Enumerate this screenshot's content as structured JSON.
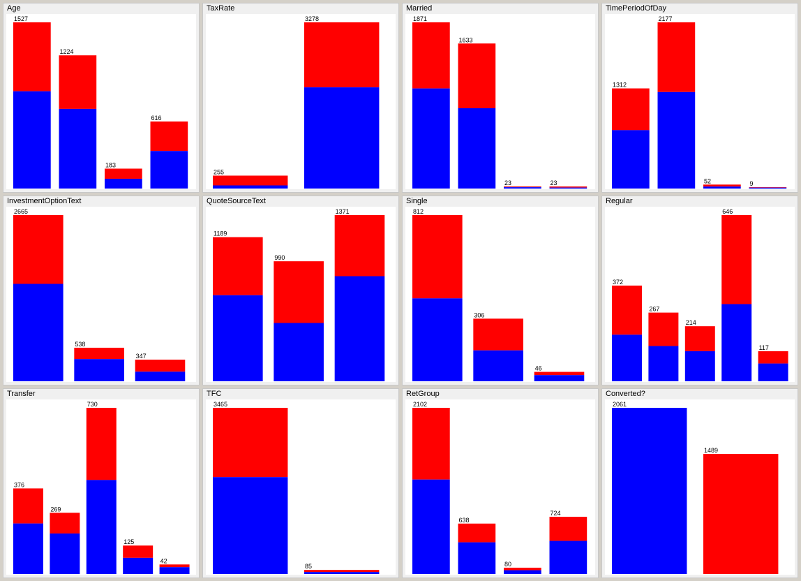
{
  "colors": {
    "series_a": "#0000ff",
    "series_b": "#ff0000"
  },
  "chart_data": [
    {
      "type": "bar",
      "title": "Age",
      "bars": [
        {
          "total": 1527,
          "a": 894
        },
        {
          "total": 1224,
          "a": 732
        },
        {
          "total": 183,
          "a": 90
        },
        {
          "total": 616,
          "a": 345
        }
      ]
    },
    {
      "type": "bar",
      "title": "TaxRate",
      "bars": [
        {
          "total": 255,
          "a": 62
        },
        {
          "total": 3278,
          "a": 1996
        }
      ]
    },
    {
      "type": "bar",
      "title": "Married",
      "bars": [
        {
          "total": 1871,
          "a": 1127
        },
        {
          "total": 1633,
          "a": 904
        },
        {
          "total": 23,
          "a": 15
        },
        {
          "total": 23,
          "a": 11
        }
      ]
    },
    {
      "type": "bar",
      "title": "TimePeriodOfDay",
      "bars": [
        {
          "total": 1312,
          "a": 765
        },
        {
          "total": 2177,
          "a": 1264
        },
        {
          "total": 52,
          "a": 26
        },
        {
          "total": 9,
          "a": 6
        }
      ]
    },
    {
      "type": "bar",
      "title": "InvestmentOptionText",
      "bars": [
        {
          "total": 2665,
          "a": 1562
        },
        {
          "total": 538,
          "a": 356
        },
        {
          "total": 347,
          "a": 154
        }
      ]
    },
    {
      "type": "bar",
      "title": "QuoteSourceText",
      "bars": [
        {
          "total": 1189,
          "a": 710
        },
        {
          "total": 990,
          "a": 481
        },
        {
          "total": 1371,
          "a": 867
        }
      ]
    },
    {
      "type": "bar",
      "title": "Single",
      "bars": [
        {
          "total": 812,
          "a": 405
        },
        {
          "total": 306,
          "a": 151
        },
        {
          "total": 46,
          "a": 30
        }
      ]
    },
    {
      "type": "bar",
      "title": "Regular",
      "bars": [
        {
          "total": 372,
          "a": 181
        },
        {
          "total": 267,
          "a": 137
        },
        {
          "total": 214,
          "a": 117
        },
        {
          "total": 646,
          "a": 300
        },
        {
          "total": 117,
          "a": 69
        }
      ]
    },
    {
      "type": "bar",
      "title": "Transfer",
      "bars": [
        {
          "total": 376,
          "a": 222
        },
        {
          "total": 269,
          "a": 178
        },
        {
          "total": 730,
          "a": 413
        },
        {
          "total": 125,
          "a": 71
        },
        {
          "total": 42,
          "a": 30
        }
      ]
    },
    {
      "type": "bar",
      "title": "TFC",
      "bars": [
        {
          "total": 3465,
          "a": 2020
        },
        {
          "total": 85,
          "a": 41
        }
      ]
    },
    {
      "type": "bar",
      "title": "RetGroup",
      "bars": [
        {
          "total": 2102,
          "a": 1195
        },
        {
          "total": 638,
          "a": 401
        },
        {
          "total": 80,
          "a": 48
        },
        {
          "total": 724,
          "a": 419
        }
      ]
    },
    {
      "type": "bar",
      "title": "Converted?",
      "bars": [
        {
          "total": 2061,
          "a": 2061
        },
        {
          "total": 1489,
          "a": 0
        }
      ]
    }
  ]
}
